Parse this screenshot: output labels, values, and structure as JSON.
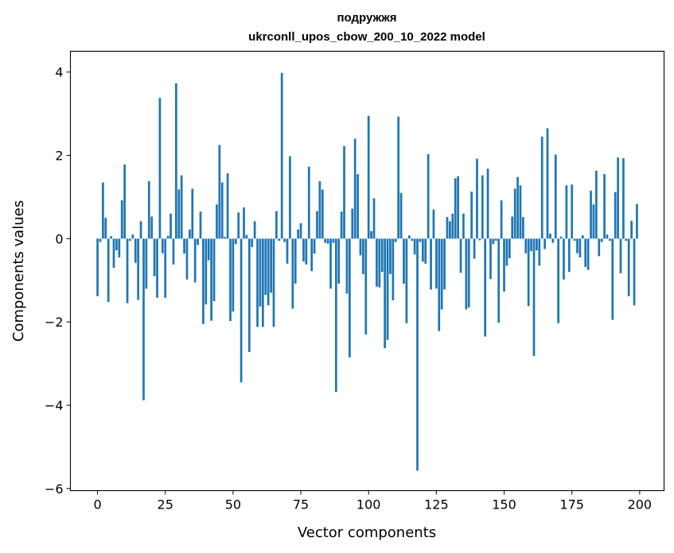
{
  "chart_data": {
    "type": "bar",
    "title": "подружжя",
    "subtitle": "ukrconll_upos_cbow_200_10_2022 model",
    "xlabel": "Vector components",
    "ylabel": "Components values",
    "xlim": [
      -10,
      209
    ],
    "ylim": [
      -6.05,
      4.5
    ],
    "xticks": [
      0,
      25,
      50,
      75,
      100,
      125,
      150,
      175,
      200
    ],
    "xtick_labels": [
      "0",
      "25",
      "50",
      "75",
      "100",
      "125",
      "150",
      "175",
      "200"
    ],
    "yticks": [
      -6,
      -4,
      -2,
      0,
      2,
      4
    ],
    "ytick_labels": [
      "−6",
      "−4",
      "−2",
      "0",
      "2",
      "4"
    ],
    "grid": false,
    "bar_color": "#1f77b4",
    "x": [
      0,
      1,
      2,
      3,
      4,
      5,
      6,
      7,
      8,
      9,
      10,
      11,
      12,
      13,
      14,
      15,
      16,
      17,
      18,
      19,
      20,
      21,
      22,
      23,
      24,
      25,
      26,
      27,
      28,
      29,
      30,
      31,
      32,
      33,
      34,
      35,
      36,
      37,
      38,
      39,
      40,
      41,
      42,
      43,
      44,
      45,
      46,
      47,
      48,
      49,
      50,
      51,
      52,
      53,
      54,
      55,
      56,
      57,
      58,
      59,
      60,
      61,
      62,
      63,
      64,
      65,
      66,
      67,
      68,
      69,
      70,
      71,
      72,
      73,
      74,
      75,
      76,
      77,
      78,
      79,
      80,
      81,
      82,
      83,
      84,
      85,
      86,
      87,
      88,
      89,
      90,
      91,
      92,
      93,
      94,
      95,
      96,
      97,
      98,
      99,
      100,
      101,
      102,
      103,
      104,
      105,
      106,
      107,
      108,
      109,
      110,
      111,
      112,
      113,
      114,
      115,
      116,
      117,
      118,
      119,
      120,
      121,
      122,
      123,
      124,
      125,
      126,
      127,
      128,
      129,
      130,
      131,
      132,
      133,
      134,
      135,
      136,
      137,
      138,
      139,
      140,
      141,
      142,
      143,
      144,
      145,
      146,
      147,
      148,
      149,
      150,
      151,
      152,
      153,
      154,
      155,
      156,
      157,
      158,
      159,
      160,
      161,
      162,
      163,
      164,
      165,
      166,
      167,
      168,
      169,
      170,
      171,
      172,
      173,
      174,
      175,
      176,
      177,
      178,
      179,
      180,
      181,
      182,
      183,
      184,
      185,
      186,
      187,
      188,
      189,
      190,
      191,
      192,
      193,
      194,
      195,
      196,
      197,
      198,
      199
    ],
    "values": [
      -1.38,
      -0.08,
      1.35,
      0.5,
      -1.52,
      0.06,
      -0.7,
      -0.28,
      -0.45,
      0.92,
      1.78,
      -1.55,
      -0.05,
      0.1,
      -0.58,
      -1.47,
      0.42,
      -3.88,
      -1.2,
      1.38,
      0.53,
      -0.9,
      -1.42,
      3.38,
      -0.35,
      -1.42,
      0.07,
      0.6,
      -0.62,
      3.73,
      1.18,
      1.52,
      -0.36,
      -0.98,
      0.22,
      1.2,
      -1.05,
      -0.15,
      0.65,
      -2.05,
      -1.58,
      -0.52,
      -1.97,
      -1.5,
      0.82,
      2.25,
      1.35,
      0.04,
      1.57,
      -1.98,
      -1.75,
      -0.13,
      0.63,
      -3.45,
      0.75,
      0.09,
      -2.72,
      -0.2,
      0.42,
      -2.12,
      -1.63,
      -2.12,
      -1.35,
      -1.6,
      -1.3,
      -2.12,
      0.66,
      -0.05,
      3.98,
      -0.08,
      -0.6,
      1.98,
      -1.68,
      -1.08,
      0.22,
      0.37,
      -0.55,
      -0.62,
      1.73,
      -0.78,
      -0.36,
      0.66,
      1.38,
      1.18,
      -0.1,
      -0.12,
      -1.2,
      -0.1,
      -3.68,
      -1.08,
      0.65,
      2.22,
      -1.32,
      -2.85,
      0.72,
      2.4,
      1.55,
      -0.4,
      -0.85,
      -2.3,
      2.95,
      0.18,
      0.97,
      -1.15,
      -1.17,
      -0.8,
      -2.63,
      -2.43,
      -0.85,
      -1.48,
      -0.08,
      2.93,
      1.1,
      -1.08,
      -2.03,
      0.08,
      -0.05,
      -0.38,
      -5.57,
      -0.08,
      -0.55,
      -0.6,
      2.03,
      -1.22,
      0.7,
      -1.2,
      -2.22,
      -1.7,
      -1.22,
      0.52,
      0.42,
      0.6,
      1.45,
      1.5,
      -0.82,
      0.6,
      -1.7,
      -1.65,
      1.13,
      -0.48,
      1.92,
      -0.04,
      1.52,
      -2.35,
      1.68,
      -0.97,
      -0.13,
      -0.05,
      -2.02,
      0.92,
      -1.27,
      -0.65,
      -0.47,
      0.53,
      1.2,
      1.48,
      1.28,
      0.52,
      -0.35,
      -1.62,
      -0.3,
      -2.82,
      -0.28,
      -0.65,
      2.45,
      -0.25,
      2.65,
      0.12,
      -0.1,
      2.02,
      -2.03,
      0.05,
      -0.98,
      1.28,
      -0.8,
      1.3,
      -0.05,
      -0.35,
      -0.45,
      0.08,
      -0.68,
      -0.75,
      1.15,
      0.82,
      1.63,
      -0.42,
      -0.08,
      1.55,
      0.1,
      -0.05,
      -1.95,
      1.12,
      1.95,
      -0.83,
      1.93,
      -0.05,
      -1.38,
      0.43,
      -1.6,
      0.83
    ]
  }
}
